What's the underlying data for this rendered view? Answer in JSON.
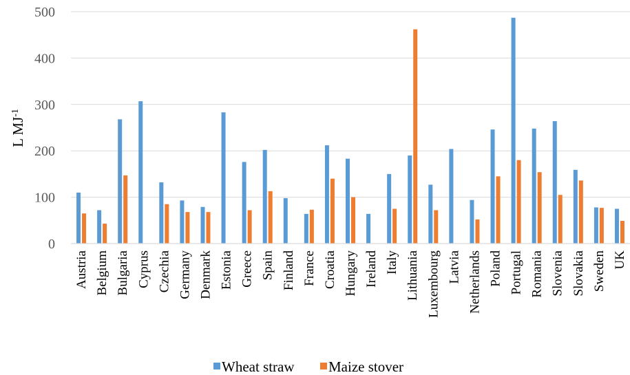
{
  "chart_data": {
    "type": "bar",
    "ylabel": "L MJ",
    "ylabel_sup": "-1",
    "ylim": [
      0,
      500
    ],
    "yticks": [
      "0",
      "100",
      "200",
      "300",
      "400",
      "500"
    ],
    "grid": "horizontal",
    "legend_position": "bottom",
    "categories": [
      "Austria",
      "Belgium",
      "Bulgaria",
      "Cyprus",
      "Czechia",
      "Germany",
      "Denmark",
      "Estonia",
      "Greece",
      "Spain",
      "Finland",
      "France",
      "Croatia",
      "Hungary",
      "Ireland",
      "Italy",
      "Lithuania",
      "Luxembourg",
      "Latvia",
      "Netherlands",
      "Poland",
      "Portugal",
      "Romania",
      "Slovenia",
      "Slovakia",
      "Sweden",
      "UK"
    ],
    "series": [
      {
        "name": "Wheat straw",
        "color": "#5B9BD5",
        "values": [
          110,
          72,
          268,
          307,
          132,
          93,
          79,
          283,
          176,
          202,
          98,
          64,
          212,
          183,
          64,
          150,
          190,
          127,
          204,
          94,
          246,
          487,
          248,
          264,
          159,
          78,
          75
        ]
      },
      {
        "name": "Maize stover",
        "color": "#ED7D31",
        "values": [
          65,
          43,
          147,
          null,
          85,
          68,
          68,
          null,
          72,
          113,
          null,
          73,
          140,
          100,
          null,
          75,
          462,
          72,
          null,
          52,
          145,
          180,
          154,
          105,
          136,
          77,
          49
        ]
      }
    ]
  }
}
